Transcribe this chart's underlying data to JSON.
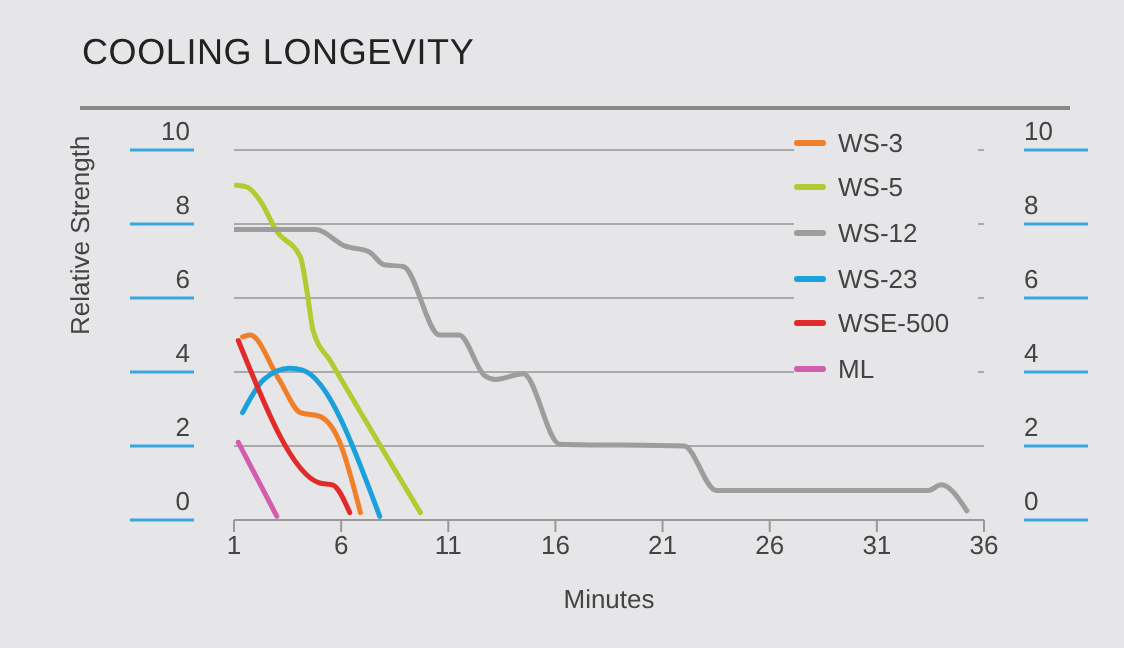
{
  "chart_data": {
    "type": "line",
    "title": "COOLING LONGEVITY",
    "xlabel": "Minutes",
    "ylabel": "Relative Strength",
    "xlim": [
      1,
      36
    ],
    "xticks": [
      1,
      6,
      11,
      16,
      21,
      26,
      31,
      36
    ],
    "ylim": [
      0,
      10
    ],
    "yticks": [
      0,
      2,
      4,
      6,
      8,
      10
    ],
    "y2lim": [
      0,
      10
    ],
    "y2ticks": [
      0,
      2,
      4,
      6,
      8,
      10
    ],
    "grid": "y",
    "legend": "top right",
    "marker": "none",
    "line_style": "solid",
    "series": [
      {
        "name": "WS-3",
        "color": "#f07f2a",
        "x": [
          1.4,
          1.75,
          3.1,
          4.1,
          5,
          5.9,
          6.9
        ],
        "values": [
          4.95,
          5,
          3.8,
          2.9,
          2.8,
          2.15,
          0.2
        ]
      },
      {
        "name": "WS-5",
        "color": "#b5c930",
        "x": [
          1.1,
          1.6,
          2.2,
          3,
          4.1,
          4.4,
          4.7,
          5.5,
          9.7
        ],
        "values": [
          9.05,
          9,
          8.65,
          7.8,
          7.1,
          6.2,
          5.1,
          4.3,
          0.2
        ]
      },
      {
        "name": "WS-12",
        "color": "#9d9d9d",
        "x": [
          1,
          4.8,
          6.2,
          7.3,
          8,
          8.9,
          10.6,
          11.5,
          12.7,
          13.2,
          14.5,
          16.2,
          22,
          23.5,
          33.4,
          34,
          35.2
        ],
        "values": [
          7.85,
          7.85,
          7.4,
          7.25,
          6.9,
          6.85,
          5,
          5,
          3.9,
          3.8,
          3.95,
          2.05,
          2,
          0.8,
          0.8,
          0.95,
          0.25
        ]
      },
      {
        "name": "WS-23",
        "color": "#1aa1dc",
        "x": [
          1.4,
          2.4,
          3.6,
          4.2,
          7.8
        ],
        "values": [
          2.9,
          3.8,
          4.1,
          4.05,
          0.1
        ]
      },
      {
        "name": "WSE-500",
        "color": "#e12b2b",
        "x": [
          1.2,
          5,
          5.6,
          6.4
        ],
        "values": [
          4.85,
          1,
          0.95,
          0.2
        ]
      },
      {
        "name": "ML",
        "color": "#d25cae",
        "x": [
          1.2,
          3
        ],
        "values": [
          2.1,
          0.1
        ]
      }
    ]
  }
}
